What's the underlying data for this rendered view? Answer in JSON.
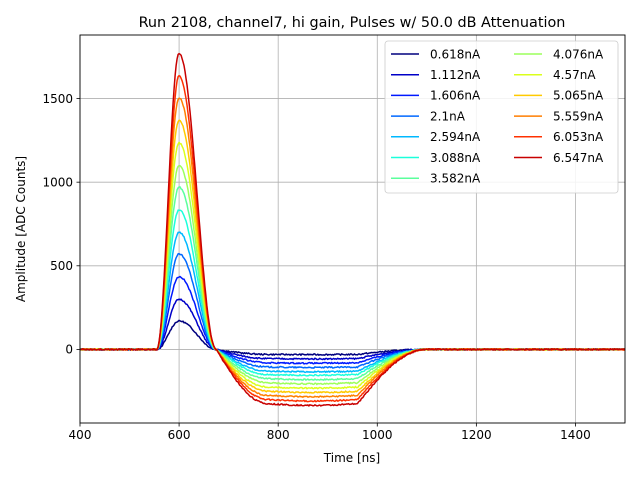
{
  "chart_data": {
    "type": "line",
    "title": "Run 2108, channel7, hi gain, Pulses w/ 50.0 dB Attenuation",
    "xlabel": "Time [ns]",
    "ylabel": "Amplitude [ADC Counts]",
    "xlim": [
      400,
      1500
    ],
    "ylim": [
      -440,
      1880
    ],
    "xticks": [
      400,
      600,
      800,
      1000,
      1200,
      1400
    ],
    "yticks": [
      0,
      500,
      1000,
      1500
    ],
    "xtick_labels": [
      "400",
      "600",
      "800",
      "1000",
      "1200",
      "1400"
    ],
    "ytick_labels": [
      "0",
      "500",
      "1000",
      "1500"
    ],
    "grid": true,
    "legend": {
      "placement": "top-right",
      "columns": 2
    },
    "pulse_shape": {
      "baseline": 0,
      "rise_start": 555,
      "peak_time": 600,
      "zero_cross": 675,
      "undershoot_plateau_start": 780,
      "undershoot_plateau_end": 960,
      "recovery_end": 1100
    },
    "series": [
      {
        "name": "0.618nA",
        "color": "#00007f",
        "peak": 170,
        "undershoot": -30
      },
      {
        "name": "1.112nA",
        "color": "#0000c8",
        "peak": 300,
        "undershoot": -55
      },
      {
        "name": "1.606nA",
        "color": "#0019ff",
        "peak": 435,
        "undershoot": -80
      },
      {
        "name": "2.1nA",
        "color": "#0068ff",
        "peak": 570,
        "undershoot": -105
      },
      {
        "name": "2.594nA",
        "color": "#00b8ff",
        "peak": 700,
        "undershoot": -130
      },
      {
        "name": "3.088nA",
        "color": "#1bffdb",
        "peak": 835,
        "undershoot": -150
      },
      {
        "name": "3.582nA",
        "color": "#5bff9c",
        "peak": 970,
        "undershoot": -175
      },
      {
        "name": "4.076nA",
        "color": "#9cff5b",
        "peak": 1100,
        "undershoot": -200
      },
      {
        "name": "4.57nA",
        "color": "#dbff1b",
        "peak": 1235,
        "undershoot": -225
      },
      {
        "name": "5.065nA",
        "color": "#ffca00",
        "peak": 1370,
        "undershoot": -250
      },
      {
        "name": "5.559nA",
        "color": "#ff7e00",
        "peak": 1505,
        "undershoot": -275
      },
      {
        "name": "6.053nA",
        "color": "#ff3100",
        "peak": 1635,
        "undershoot": -300
      },
      {
        "name": "6.547nA",
        "color": "#c80000",
        "peak": 1770,
        "undershoot": -325
      }
    ]
  }
}
